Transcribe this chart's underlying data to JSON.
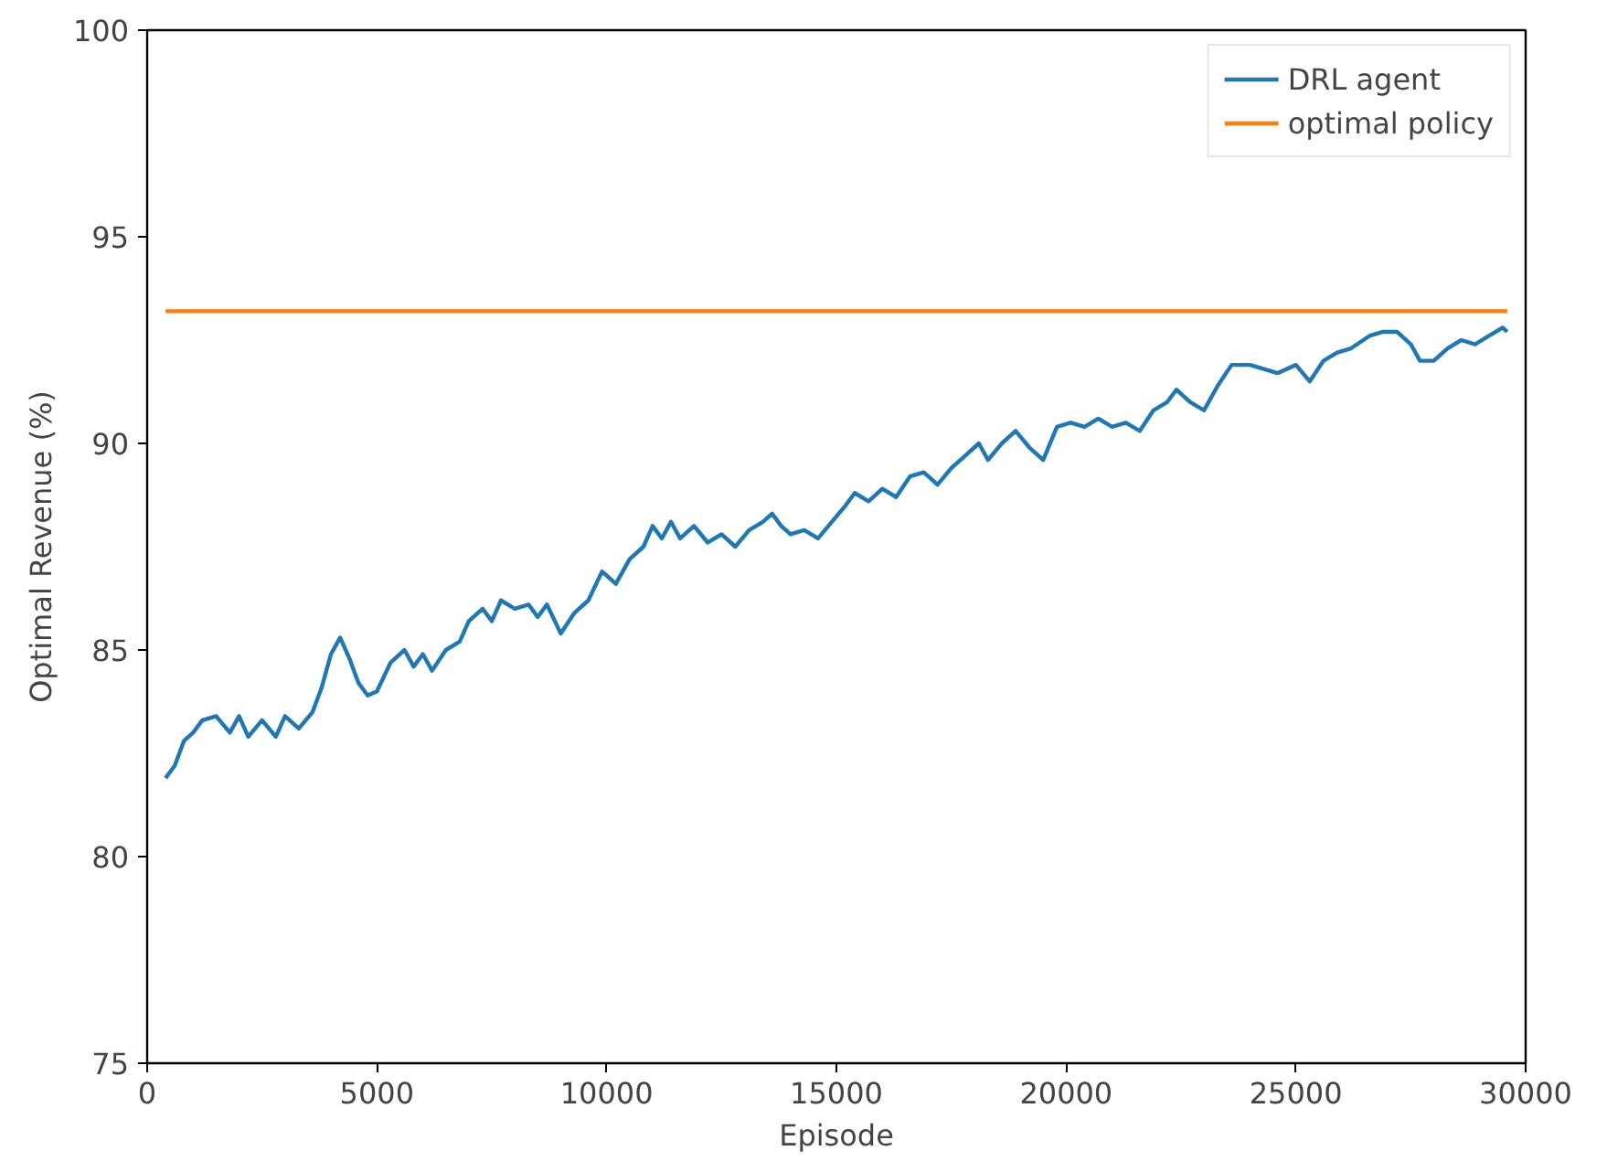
{
  "chart_data": {
    "type": "line",
    "xlabel": "Episode",
    "ylabel": "Optimal Revenue (%)",
    "xlim": [
      0,
      30000
    ],
    "ylim": [
      75,
      100
    ],
    "xticks": [
      0,
      5000,
      10000,
      15000,
      20000,
      25000,
      30000
    ],
    "yticks": [
      75,
      80,
      85,
      90,
      95,
      100
    ],
    "grid": false,
    "legend": "top right",
    "line_style": "solid",
    "marker": "none",
    "series": [
      {
        "name": "DRL agent",
        "color": "#1f77b4",
        "x": [
          400,
          600,
          800,
          1000,
          1200,
          1500,
          1800,
          2000,
          2200,
          2500,
          2800,
          3000,
          3300,
          3600,
          3800,
          4000,
          4200,
          4400,
          4600,
          4800,
          5000,
          5300,
          5600,
          5800,
          6000,
          6200,
          6500,
          6800,
          7000,
          7300,
          7500,
          7700,
          8000,
          8300,
          8500,
          8700,
          9000,
          9300,
          9600,
          9900,
          10200,
          10500,
          10800,
          11000,
          11200,
          11400,
          11600,
          11900,
          12200,
          12500,
          12800,
          13100,
          13400,
          13600,
          13800,
          14000,
          14300,
          14600,
          14900,
          15200,
          15400,
          15700,
          16000,
          16300,
          16600,
          16900,
          17200,
          17500,
          17800,
          18100,
          18300,
          18600,
          18900,
          19200,
          19500,
          19800,
          20100,
          20400,
          20700,
          21000,
          21300,
          21600,
          21900,
          22200,
          22400,
          22700,
          23000,
          23300,
          23600,
          24000,
          24300,
          24600,
          25000,
          25300,
          25600,
          25900,
          26200,
          26600,
          26900,
          27200,
          27500,
          27700,
          28000,
          28300,
          28600,
          28900,
          29200,
          29500,
          29600
        ],
        "values": [
          81.9,
          82.2,
          82.8,
          83.0,
          83.3,
          83.4,
          83.0,
          83.4,
          82.9,
          83.3,
          82.9,
          83.4,
          83.1,
          83.5,
          84.1,
          84.9,
          85.3,
          84.8,
          84.2,
          83.9,
          84.0,
          84.7,
          85.0,
          84.6,
          84.9,
          84.5,
          85.0,
          85.2,
          85.7,
          86.0,
          85.7,
          86.2,
          86.0,
          86.1,
          85.8,
          86.1,
          85.4,
          85.9,
          86.2,
          86.9,
          86.6,
          87.2,
          87.5,
          88.0,
          87.7,
          88.1,
          87.7,
          88.0,
          87.6,
          87.8,
          87.5,
          87.9,
          88.1,
          88.3,
          88.0,
          87.8,
          87.9,
          87.7,
          88.1,
          88.5,
          88.8,
          88.6,
          88.9,
          88.7,
          89.2,
          89.3,
          89.0,
          89.4,
          89.7,
          90.0,
          89.6,
          90.0,
          90.3,
          89.9,
          89.6,
          90.4,
          90.5,
          90.4,
          90.6,
          90.4,
          90.5,
          90.3,
          90.8,
          91.0,
          91.3,
          91.0,
          90.8,
          91.4,
          91.9,
          91.9,
          91.8,
          91.7,
          91.9,
          91.5,
          92.0,
          92.2,
          92.3,
          92.6,
          92.7,
          92.7,
          92.4,
          92.0,
          92.0,
          92.3,
          92.5,
          92.4,
          92.6,
          92.8,
          92.7
        ]
      },
      {
        "name": "optimal policy",
        "color": "#ff7f0e",
        "x": [
          400,
          29600
        ],
        "values": [
          93.2,
          93.2
        ]
      }
    ]
  }
}
